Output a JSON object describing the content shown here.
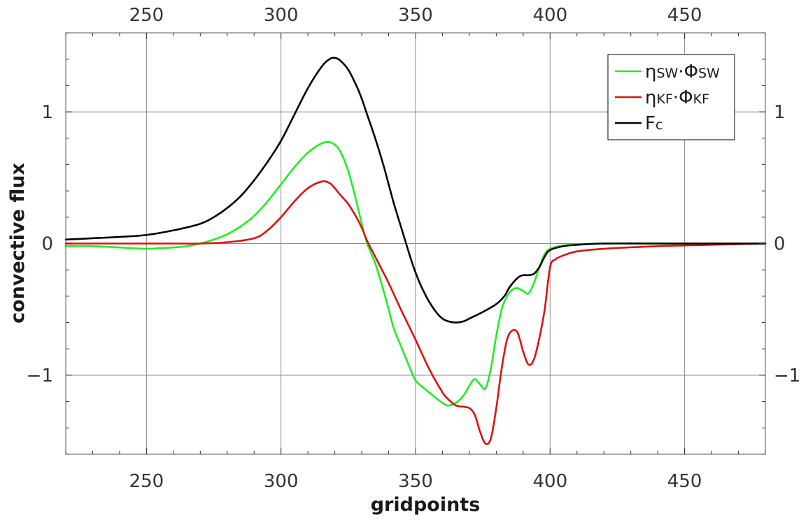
{
  "chart_data": {
    "type": "line",
    "xlabel": "gridpoints",
    "ylabel": "convective flux",
    "xlim": [
      220,
      480
    ],
    "ylim": [
      -1.6,
      1.6
    ],
    "x_ticks": [
      250,
      300,
      350,
      400,
      450
    ],
    "y_ticks": [
      -1,
      0,
      1
    ],
    "x_tick_labels": [
      "250",
      "300",
      "350",
      "400",
      "450"
    ],
    "y_tick_labels": [
      "−1",
      "0",
      "1"
    ],
    "top_axis_labels": true,
    "right_axis_labels": true,
    "grid": true,
    "legend_position": "top-right",
    "legend": [
      {
        "base1": "η",
        "sub1": "SW",
        "base2": "·Φ",
        "sub2": "SW",
        "color": "#22ee22"
      },
      {
        "base1": "η",
        "sub1": "KF",
        "base2": "·Φ",
        "sub2": "KF",
        "color": "#dd1111"
      },
      {
        "base1": "F",
        "sub1": "c",
        "base2": "",
        "sub2": "",
        "color": "#000000"
      }
    ],
    "series": [
      {
        "key": "sw",
        "color": "#22ee22",
        "x": [
          220,
          230,
          240,
          250,
          255,
          260,
          265,
          270,
          275,
          280,
          285,
          290,
          295,
          300,
          305,
          310,
          315,
          318,
          320,
          322,
          325,
          328,
          330,
          332,
          335,
          338,
          340,
          342,
          345,
          348,
          350,
          352,
          355,
          358,
          360,
          362,
          365,
          368,
          370,
          372,
          374,
          376,
          378,
          380,
          382,
          384,
          386,
          388,
          390,
          392,
          394,
          396,
          398,
          400,
          405,
          410,
          420,
          440,
          460,
          480
        ],
        "y": [
          -0.02,
          -0.02,
          -0.03,
          -0.04,
          -0.035,
          -0.03,
          -0.02,
          0.0,
          0.03,
          0.07,
          0.13,
          0.21,
          0.32,
          0.45,
          0.58,
          0.69,
          0.76,
          0.77,
          0.75,
          0.7,
          0.55,
          0.32,
          0.15,
          0.0,
          -0.15,
          -0.35,
          -0.5,
          -0.65,
          -0.8,
          -0.95,
          -1.04,
          -1.08,
          -1.13,
          -1.18,
          -1.21,
          -1.23,
          -1.21,
          -1.15,
          -1.08,
          -1.03,
          -1.07,
          -1.1,
          -0.95,
          -0.7,
          -0.5,
          -0.4,
          -0.35,
          -0.34,
          -0.36,
          -0.38,
          -0.3,
          -0.18,
          -0.08,
          -0.04,
          -0.015,
          -0.008,
          0.0,
          0.0,
          0.0,
          0.0
        ]
      },
      {
        "key": "kf",
        "color": "#dd1111",
        "x": [
          220,
          240,
          260,
          270,
          280,
          290,
          295,
          300,
          305,
          310,
          315,
          318,
          320,
          322,
          325,
          328,
          330,
          332,
          335,
          340,
          345,
          350,
          355,
          360,
          362,
          365,
          368,
          370,
          372,
          374,
          376,
          378,
          380,
          382,
          384,
          386,
          388,
          390,
          392,
          394,
          396,
          398,
          400,
          402,
          405,
          410,
          420,
          440,
          460,
          480
        ],
        "y": [
          0.0,
          0.0,
          0.0,
          0.0,
          0.01,
          0.04,
          0.1,
          0.2,
          0.32,
          0.42,
          0.47,
          0.46,
          0.42,
          0.37,
          0.3,
          0.2,
          0.12,
          0.02,
          -0.1,
          -0.3,
          -0.52,
          -0.73,
          -0.95,
          -1.13,
          -1.18,
          -1.23,
          -1.24,
          -1.25,
          -1.3,
          -1.43,
          -1.52,
          -1.48,
          -1.25,
          -0.95,
          -0.73,
          -0.66,
          -0.68,
          -0.82,
          -0.92,
          -0.88,
          -0.72,
          -0.5,
          -0.18,
          -0.12,
          -0.09,
          -0.06,
          -0.04,
          -0.02,
          -0.01,
          0.0
        ]
      },
      {
        "key": "fc",
        "color": "#000000",
        "x": [
          220,
          230,
          240,
          250,
          260,
          270,
          275,
          280,
          285,
          290,
          295,
          300,
          305,
          310,
          315,
          318,
          320,
          322,
          325,
          328,
          330,
          332,
          335,
          338,
          340,
          342,
          345,
          348,
          350,
          352,
          355,
          358,
          360,
          362,
          365,
          368,
          370,
          375,
          380,
          383,
          385,
          388,
          390,
          392,
          394,
          396,
          398,
          400,
          405,
          410,
          420,
          440,
          460,
          480
        ],
        "y": [
          0.03,
          0.04,
          0.05,
          0.065,
          0.1,
          0.15,
          0.2,
          0.27,
          0.36,
          0.48,
          0.62,
          0.78,
          0.98,
          1.18,
          1.34,
          1.4,
          1.41,
          1.39,
          1.32,
          1.2,
          1.1,
          0.98,
          0.8,
          0.6,
          0.45,
          0.3,
          0.1,
          -0.1,
          -0.22,
          -0.32,
          -0.44,
          -0.53,
          -0.57,
          -0.59,
          -0.6,
          -0.59,
          -0.57,
          -0.52,
          -0.46,
          -0.4,
          -0.33,
          -0.26,
          -0.24,
          -0.24,
          -0.23,
          -0.18,
          -0.1,
          -0.05,
          -0.02,
          -0.01,
          0.0,
          0.0,
          0.0,
          0.0
        ]
      }
    ]
  }
}
